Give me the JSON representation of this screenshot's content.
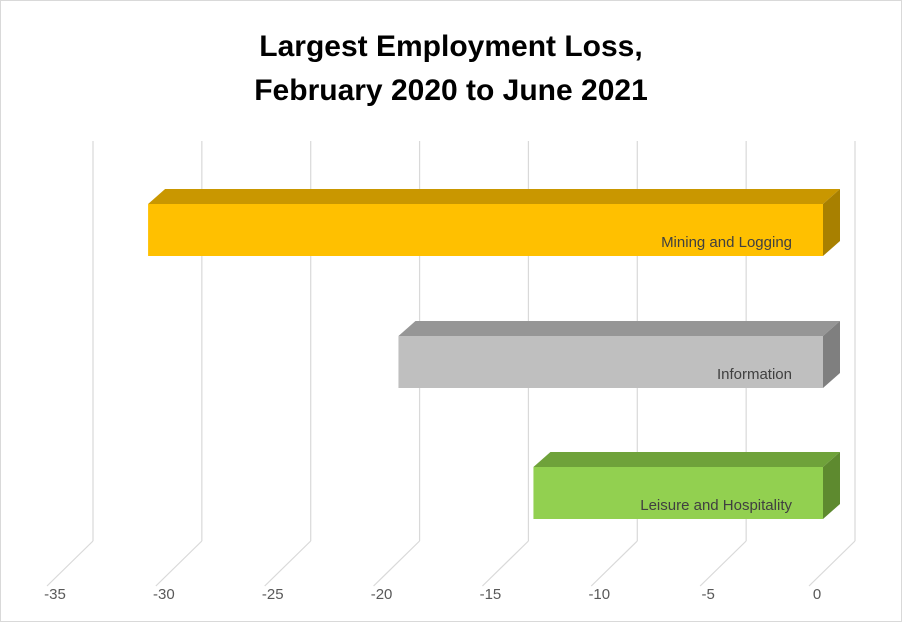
{
  "title_lines": [
    "Largest Employment Loss,",
    "February 2020 to June 2021"
  ],
  "chart_data": {
    "type": "bar",
    "orientation": "horizontal",
    "style": "3d",
    "title": "Largest Employment Loss, February 2020 to June 2021",
    "categories": [
      "Mining and Logging",
      "Information",
      "Leisure and Hospitality"
    ],
    "values": [
      -31,
      -19.5,
      -13.3
    ],
    "colors": [
      "#ffc000",
      "#bfbfbf",
      "#92d050"
    ],
    "side_colors": [
      "#a88000",
      "#7f7f7f",
      "#5e8a2f"
    ],
    "top_colors": [
      "#c99700",
      "#969696",
      "#6fa23a"
    ],
    "xlim": [
      -35,
      0
    ],
    "xticks": [
      -35,
      -30,
      -25,
      -20,
      -15,
      -10,
      -5,
      0
    ],
    "grid": true,
    "legend": "none",
    "xlabel": "",
    "ylabel": ""
  }
}
